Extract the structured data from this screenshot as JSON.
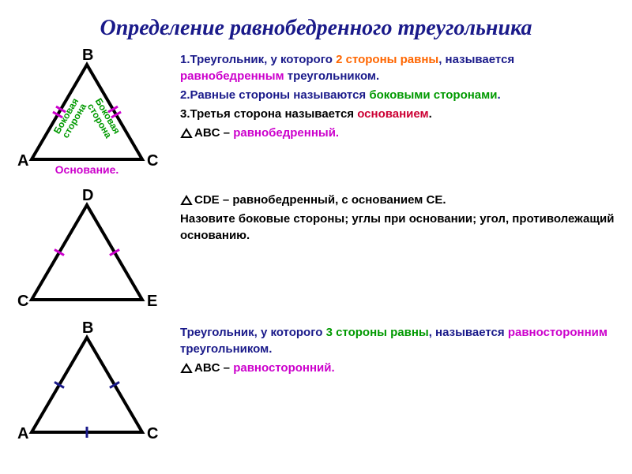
{
  "title": {
    "text": "Определение равнобедренного треугольника",
    "color": "#1a1a8a",
    "fontsize": 28
  },
  "colors": {
    "black": "#000000",
    "green": "#009900",
    "magenta": "#cc00cc",
    "orange": "#ff6600",
    "blue": "#1a1a8a",
    "red": "#cc0033"
  },
  "tri1": {
    "type": "triangle",
    "vertices": {
      "A": [
        20,
        140
      ],
      "B": [
        90,
        20
      ],
      "C": [
        160,
        140
      ]
    },
    "labels": {
      "A": "A",
      "B": "B",
      "C": "C"
    },
    "side_labels": {
      "left": "Боковая сторона",
      "right": "Боковая сторона",
      "base": "Основание."
    },
    "side_label_color": "#009900",
    "base_label_color": "#cc00cc",
    "tick_color": "#cc00cc",
    "stroke": "#000000",
    "stroke_width": 4,
    "font_vertex": 20
  },
  "tri2": {
    "type": "triangle",
    "vertices": {
      "C": [
        20,
        140
      ],
      "D": [
        90,
        20
      ],
      "E": [
        160,
        140
      ]
    },
    "labels": {
      "C": "C",
      "D": "D",
      "E": "E"
    },
    "tick_color": "#cc00cc",
    "stroke": "#000000",
    "stroke_width": 4,
    "font_vertex": 20
  },
  "tri3": {
    "type": "triangle",
    "vertices": {
      "A": [
        20,
        140
      ],
      "B": [
        90,
        20
      ],
      "C": [
        160,
        140
      ]
    },
    "labels": {
      "A": "A",
      "B": "B",
      "C": "C"
    },
    "tick_color": "#1a1a8a",
    "stroke": "#000000",
    "stroke_width": 4,
    "font_vertex": 20,
    "ticks_all_sides": true
  },
  "text1": [
    {
      "prefix": "1.Треугольник, у которого ",
      "hl": "2 стороны равны",
      "hlcolor": "#ff6600",
      "mid": ", называется ",
      "hl2": "равнобедренным",
      "hl2color": "#cc00cc",
      "suffix": " треугольником.",
      "color": "#1a1a8a"
    },
    {
      "prefix": "2.Равные стороны называются ",
      "hl": "боковыми сторонами",
      "hlcolor": "#009900",
      "suffix": ".",
      "color": "#1a1a8a"
    },
    {
      "prefix": "3.Третья сторона называется ",
      "hl": "основанием",
      "hlcolor": "#cc0033",
      "suffix": ".",
      "color": "#000000"
    },
    {
      "tri": "ABC",
      "mid": " – ",
      "hl": "равнобедренный.",
      "hlcolor": "#cc00cc",
      "color": "#000000"
    }
  ],
  "text2": [
    {
      "tri": "CDE",
      "suffix": " – равнобедренный, с основанием CE.",
      "color": "#000000"
    },
    {
      "full": "Назовите боковые стороны; углы при основании; угол, противолежащий основанию.",
      "color": "#000000"
    }
  ],
  "text3": [
    {
      "prefix": "Треугольник, у которого ",
      "hl": "3 стороны равны",
      "hlcolor": "#009900",
      "mid": ", называется ",
      "hl2": "равносторонним",
      "hl2color": "#cc00cc",
      "suffix": " треугольником.",
      "color": "#1a1a8a"
    },
    {
      "tri": "ABC",
      "mid": " – ",
      "hl": "равносторонний.",
      "hlcolor": "#cc00cc",
      "color": "#000000"
    }
  ]
}
